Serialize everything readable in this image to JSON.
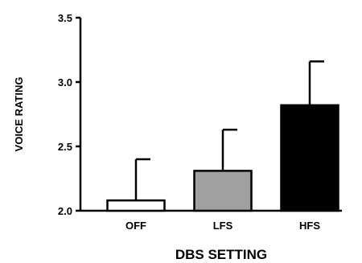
{
  "chart_data": {
    "type": "bar",
    "title": "",
    "xlabel": "DBS SETTING",
    "ylabel": "VOICE RATING",
    "categories": [
      "OFF",
      "LFS",
      "HFS"
    ],
    "values": [
      2.08,
      2.31,
      2.82
    ],
    "error_upper": [
      0.32,
      0.32,
      0.34
    ],
    "bar_fills": [
      "#ffffff",
      "#a0a0a0",
      "#000000"
    ],
    "ylim": [
      2.0,
      3.5
    ],
    "yticks": [
      "2.0",
      "2.5",
      "3.0",
      "3.5"
    ],
    "grid": false
  }
}
